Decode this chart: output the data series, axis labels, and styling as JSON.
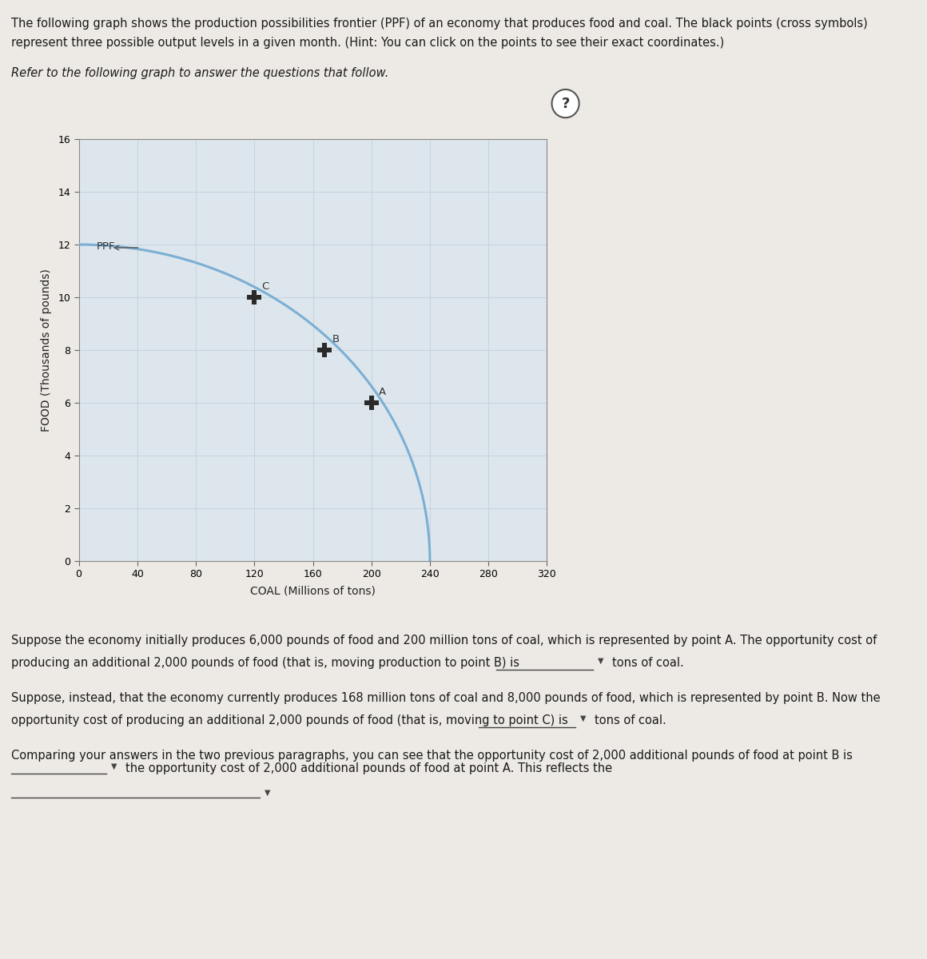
{
  "title_line1": "The following graph shows the production possibilities frontier (PPF) of an economy that produces food and coal. The black points (cross symbols)",
  "title_line2": "represent three possible output levels in a given month. (Hint: You can click on the points to see their exact coordinates.)",
  "subtitle_text": "Refer to the following graph to answer the questions that follow.",
  "xlabel": "COAL (Millions of tons)",
  "ylabel": "FOOD (Thousands of pounds)",
  "ppf_label": "PPF",
  "xlim": [
    0,
    320
  ],
  "ylim": [
    0,
    16
  ],
  "xticks": [
    0,
    40,
    80,
    120,
    160,
    200,
    240,
    280,
    320
  ],
  "yticks": [
    0,
    2,
    4,
    6,
    8,
    10,
    12,
    14,
    16
  ],
  "ppf_x_max": 240,
  "ppf_y_max": 12,
  "ppf_color": "#7bafd4",
  "ppf_linewidth": 2.2,
  "point_A": [
    200,
    6
  ],
  "point_B": [
    168,
    8
  ],
  "point_C": [
    120,
    10
  ],
  "point_color": "#2a2a2a",
  "point_markersize": 13,
  "grid_color": "#c0cfd8",
  "grid_alpha": 0.8,
  "plot_bg": "#dce6ec",
  "outer_bg": "#f0ede8",
  "panel_bg": "#f5f2ee",
  "panel_border": "#c8b89a",
  "page_bg": "#edeae5",
  "body_font_size": 10.5
}
